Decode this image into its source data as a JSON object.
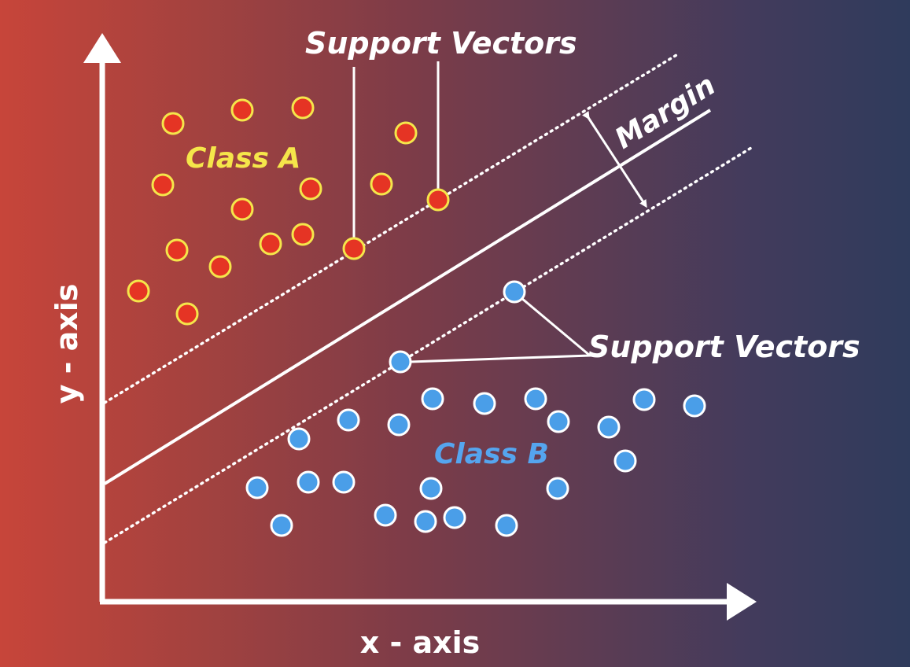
{
  "diagram": {
    "x_axis_label": "x - axis",
    "y_axis_label": "y - axis",
    "margin_label": "Margin",
    "support_vectors_label_top": "Support Vectors",
    "support_vectors_label_right": "Support Vectors",
    "class_a_label": "Class A",
    "class_b_label": "Class B"
  },
  "colors": {
    "class_a_fill": "#e53424",
    "class_a_stroke": "#f5e64a",
    "class_a_label": "#f5e64a",
    "class_b_fill": "#4a9ee8",
    "class_b_stroke": "#ffffff",
    "class_b_label": "#55a5ef",
    "lines": "#ffffff"
  }
}
